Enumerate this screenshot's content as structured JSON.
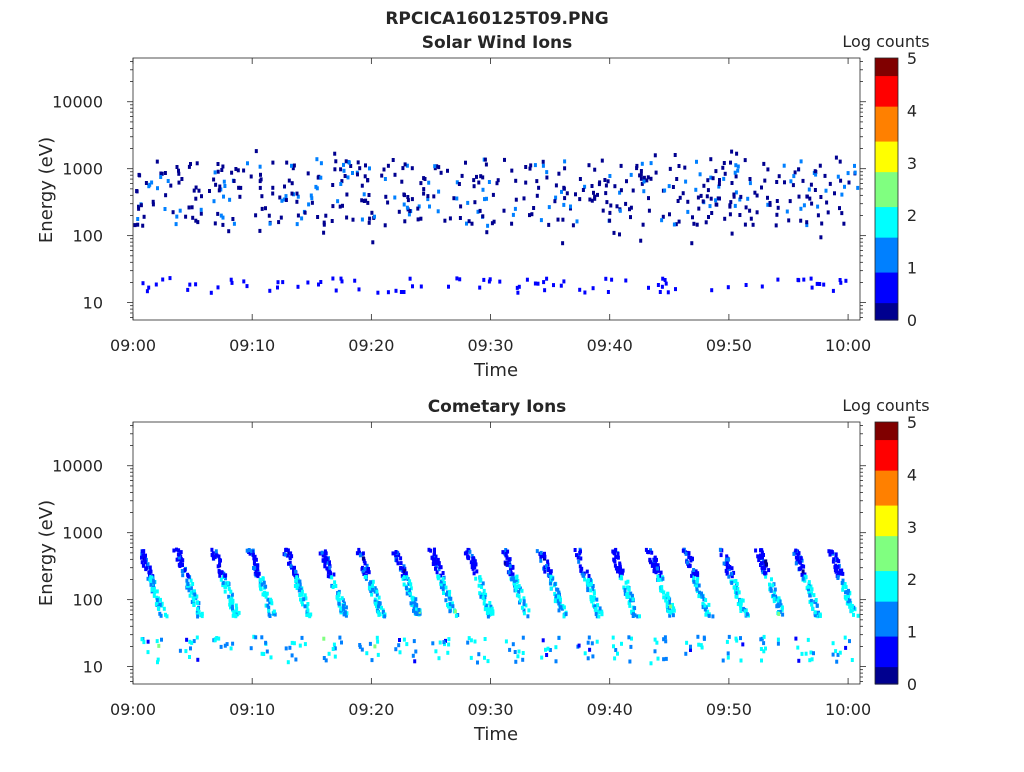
{
  "figure": {
    "title": "RPCICA160125T09.PNG"
  },
  "colormap": [
    "#00008f",
    "#0000ff",
    "#0080ff",
    "#00ffff",
    "#80ff80",
    "#ffff00",
    "#ff8000",
    "#ff0000",
    "#800000"
  ],
  "chart_data": [
    {
      "type": "heatmap",
      "title": "Solar Wind Ions",
      "xlabel": "Time",
      "ylabel": "Energy (eV)",
      "x_range": [
        "09:00",
        "10:01"
      ],
      "xticks": [
        "09:00",
        "09:10",
        "09:20",
        "09:30",
        "09:40",
        "09:50",
        "10:00"
      ],
      "y_scale": "log",
      "ylim": [
        5.5,
        45000
      ],
      "yticks": [
        {
          "value": 10,
          "label": "10"
        },
        {
          "value": 100,
          "label": "100"
        },
        {
          "value": 1000,
          "label": "1000"
        },
        {
          "value": 10000,
          "label": "10000"
        }
      ],
      "colorbar": {
        "label": "Log counts",
        "range": [
          0,
          5
        ],
        "ticks": [
          "0",
          "1",
          "2",
          "3",
          "4",
          "5"
        ]
      },
      "grid": false,
      "features": {
        "high_energy_sparse_band_eV": [
          150,
          1500
        ],
        "low_energy_band_eV": [
          15,
          25
        ],
        "dominant_log_counts": [
          0,
          1
        ]
      }
    },
    {
      "type": "heatmap",
      "title": "Cometary Ions",
      "xlabel": "Time",
      "ylabel": "Energy (eV)",
      "x_range": [
        "09:00",
        "10:01"
      ],
      "xticks": [
        "09:00",
        "09:10",
        "09:20",
        "09:30",
        "09:40",
        "09:50",
        "10:00"
      ],
      "y_scale": "log",
      "ylim": [
        5.5,
        45000
      ],
      "yticks": [
        {
          "value": 10,
          "label": "10"
        },
        {
          "value": 100,
          "label": "100"
        },
        {
          "value": 1000,
          "label": "1000"
        },
        {
          "value": 10000,
          "label": "10000"
        }
      ],
      "colorbar": {
        "label": "Log counts",
        "range": [
          0,
          5
        ],
        "ticks": [
          "0",
          "1",
          "2",
          "3",
          "4",
          "5"
        ]
      },
      "grid": false,
      "features": {
        "sweep_streaks_eV": [
          60,
          600
        ],
        "low_energy_band_eV": [
          12,
          30
        ],
        "dominant_log_counts": [
          0,
          2
        ]
      }
    }
  ]
}
